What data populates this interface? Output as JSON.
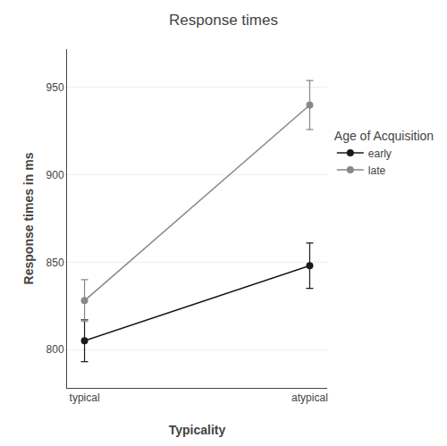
{
  "chart_data": {
    "type": "line",
    "title": "Response times",
    "xlabel": "Typicality",
    "ylabel": "Response times in ms",
    "categories": [
      "typical",
      "atypical"
    ],
    "series": [
      {
        "name": "early",
        "color": "#1a1a1a",
        "marker": "circle",
        "values": [
          805,
          848
        ],
        "errors": [
          12,
          13
        ]
      },
      {
        "name": "late",
        "color": "#888888",
        "marker": "circle",
        "values": [
          828,
          940
        ],
        "errors": [
          12,
          14
        ]
      }
    ],
    "ylim": [
      778,
      972
    ],
    "yticks": [
      800,
      850,
      900,
      950
    ],
    "grid": true,
    "legend": "right",
    "legend_title": "Age of Acquisition"
  }
}
